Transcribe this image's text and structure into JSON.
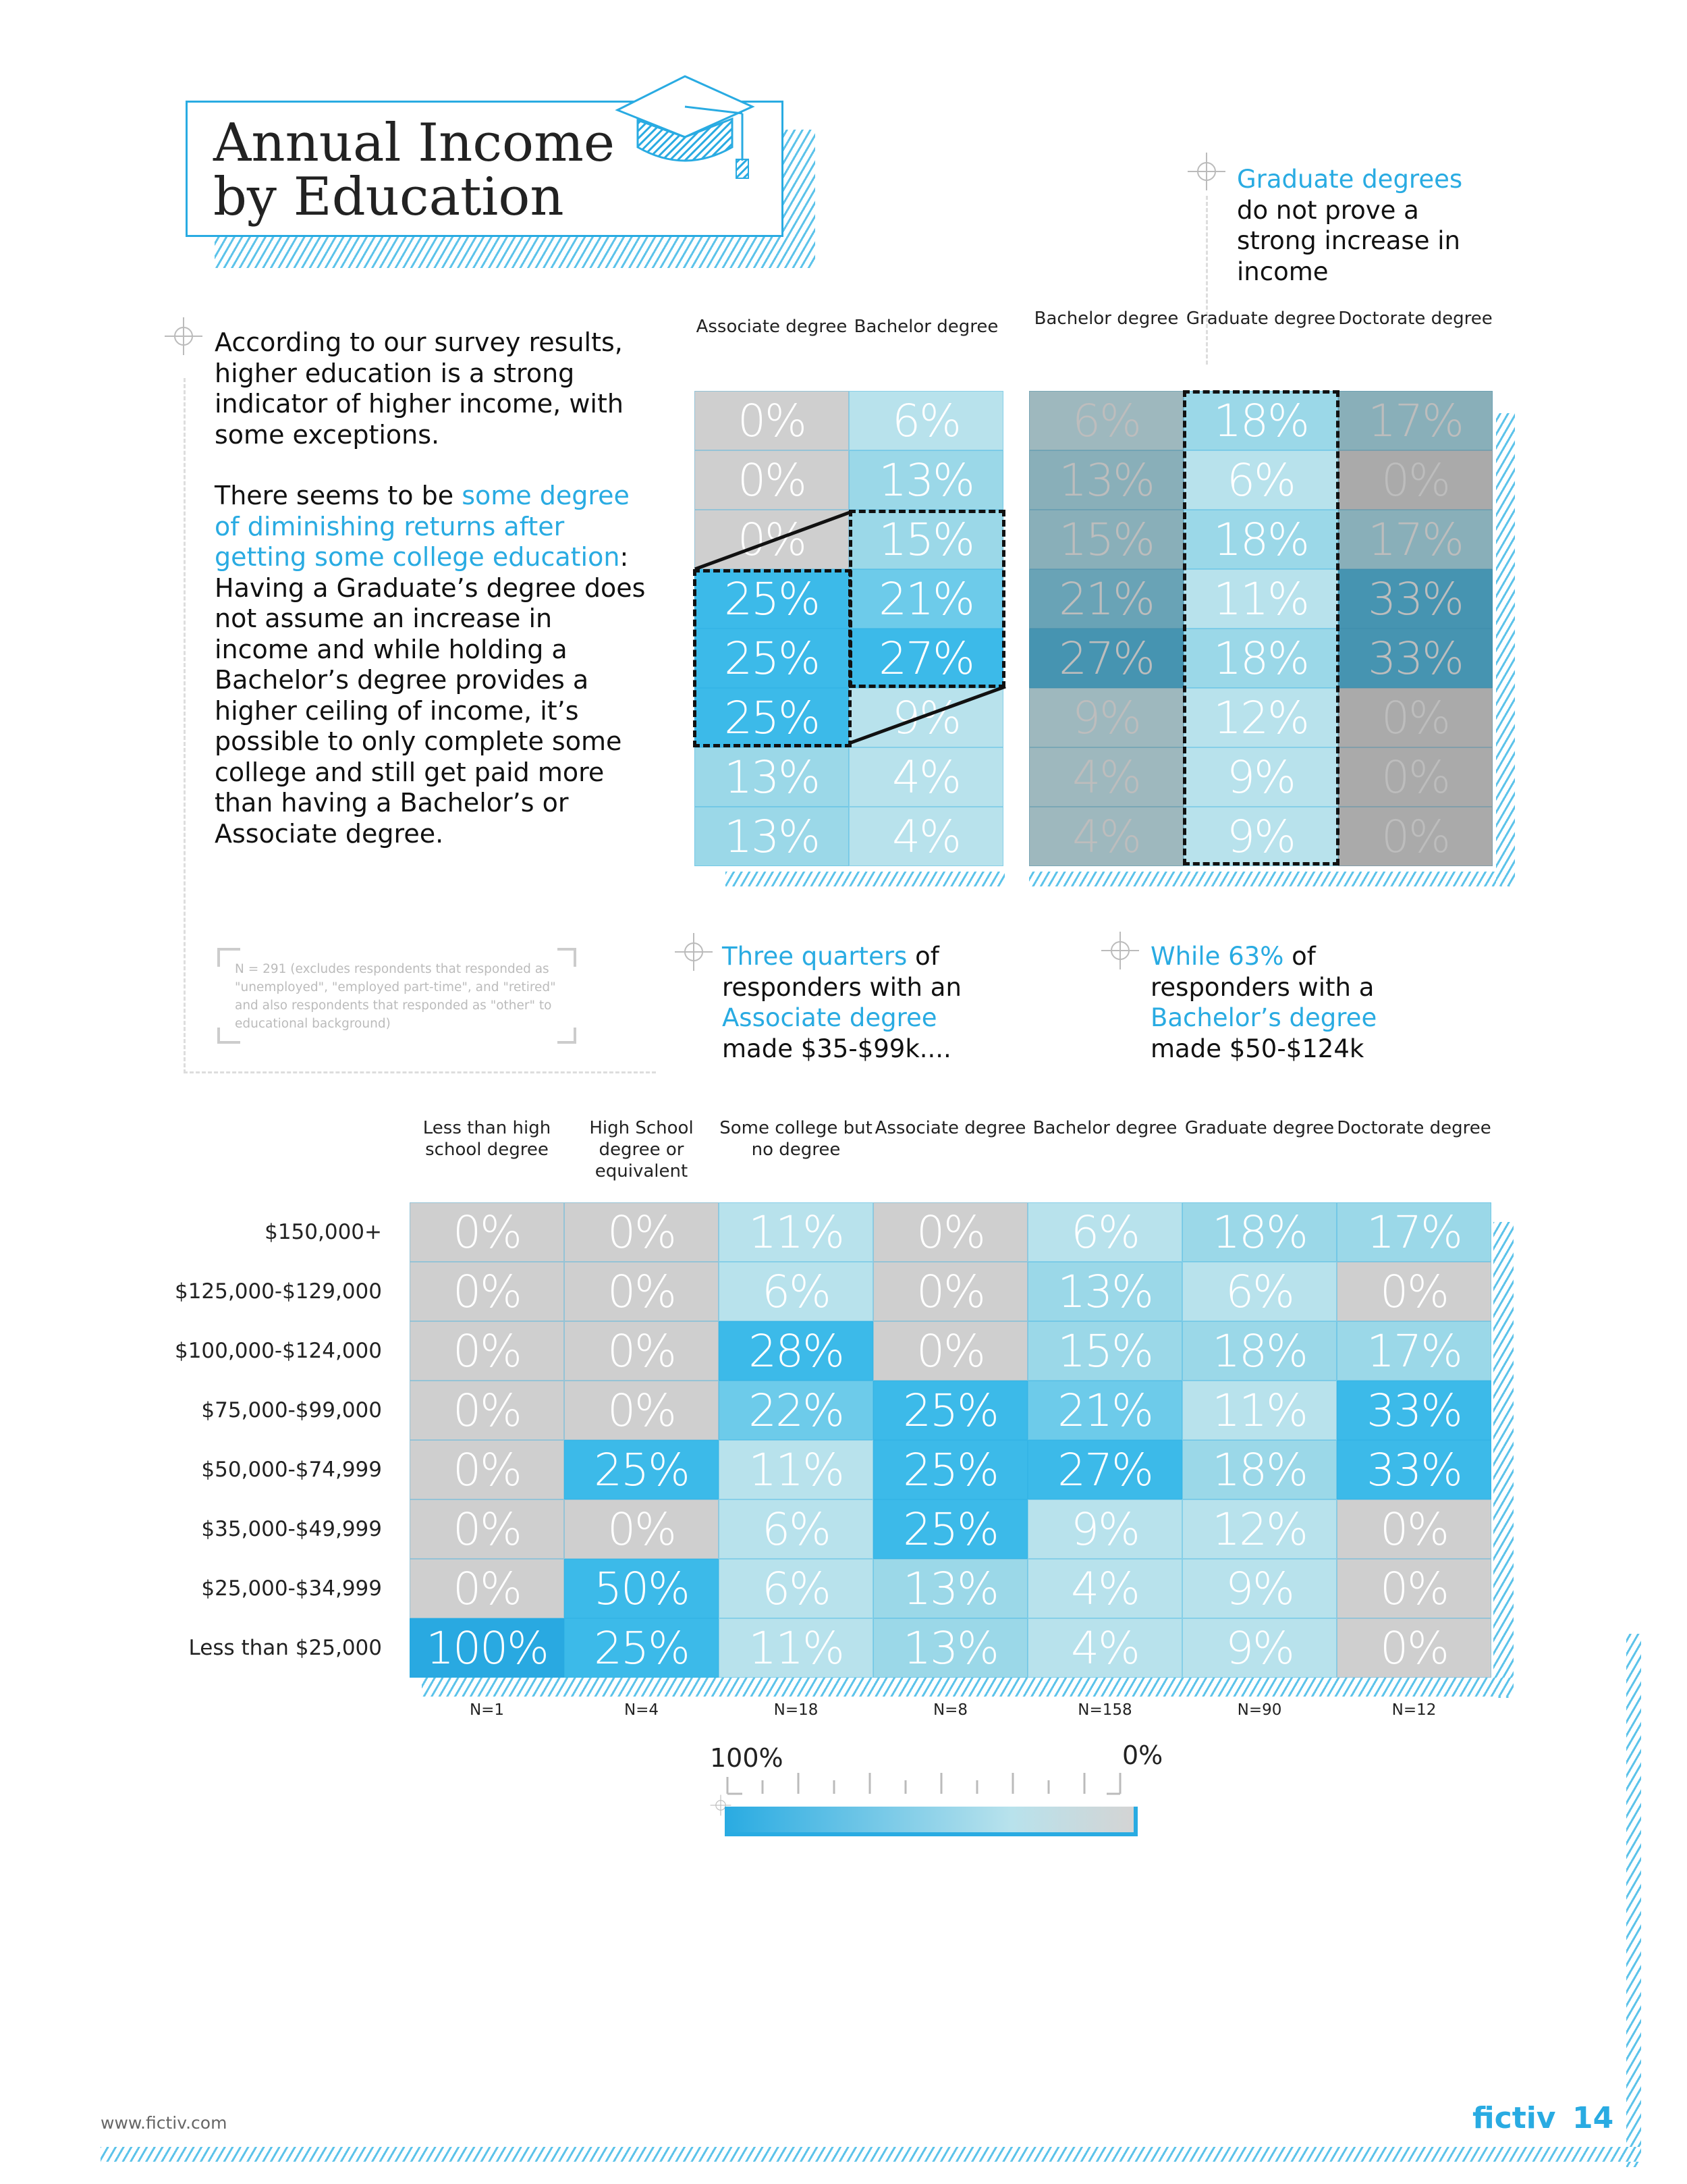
{
  "title": {
    "line1": "Annual Income",
    "line2": "by Education"
  },
  "intro": {
    "p1": "According to our survey results, higher education is a strong indicator of higher income, with some exceptions.",
    "p2_a": "There seems to be ",
    "p2_highlight": "some degree of diminishing returns after getting some college education",
    "p2_b": ": Having a Graduate’s degree does not assume an increase in income and while holding a Bachelor’s degree provides a higher ceiling of income, it’s possible to only complete some college and still get paid more than having a Bachelor’s or Associate degree."
  },
  "footnote": "N = 291 (excludes respondents that responded as \"unemployed\", \"employed part-time\", and \"retired\" and also respondents that responded as \"other\" to educational background)",
  "callouts": {
    "graduate": {
      "highlight": "Graduate degrees",
      "rest": "do not prove a strong increase in income"
    },
    "associate": {
      "h1": "Three quarters",
      "t1": " of responders with an ",
      "h2": "Associate degree",
      "t2": " made $35-$99k...."
    },
    "bachelor": {
      "h1": "While 63%",
      "t1": " of responders with a ",
      "h2": "Bachelor’s degree",
      "t2": " made $50-$124k"
    }
  },
  "mini_left": {
    "headers": [
      "Associate degree",
      "Bachelor degree"
    ]
  },
  "mini_right": {
    "headers": [
      "Bachelor degree",
      "Graduate degree",
      "Doctorate degree"
    ]
  },
  "chart_data": {
    "type": "heatmap",
    "categories": [
      "Less than high school degree",
      "High School degree or equivalent",
      "Some college but no degree",
      "Associate degree",
      "Bachelor degree",
      "Graduate degree",
      "Doctorate degree"
    ],
    "rows": [
      "$150,000+",
      "$125,000-$129,000",
      "$100,000-$124,000",
      "$75,000-$99,000",
      "$50,000-$74,999",
      "$35,000-$49,999",
      "$25,000-$34,999",
      "Less than $25,000"
    ],
    "values": [
      [
        0,
        0,
        11,
        0,
        6,
        18,
        17
      ],
      [
        0,
        0,
        6,
        0,
        13,
        6,
        0
      ],
      [
        0,
        0,
        28,
        0,
        15,
        18,
        17
      ],
      [
        0,
        0,
        22,
        25,
        21,
        11,
        33
      ],
      [
        0,
        25,
        11,
        25,
        27,
        18,
        33
      ],
      [
        0,
        0,
        6,
        25,
        9,
        12,
        0
      ],
      [
        0,
        50,
        6,
        13,
        4,
        9,
        0
      ],
      [
        100,
        25,
        11,
        13,
        4,
        9,
        0
      ]
    ],
    "value_format": "percent",
    "n_labels": [
      "N=1",
      "N=4",
      "N=18",
      "N=8",
      "N=158",
      "N=90",
      "N=12"
    ],
    "scale": {
      "max_label": "100%",
      "min_label": "0%",
      "max_color": "#29abe2",
      "min_color": "#d4d4d4"
    }
  },
  "footer": {
    "url": "www.fictiv.com",
    "brand": "fictiv",
    "page": "14"
  }
}
